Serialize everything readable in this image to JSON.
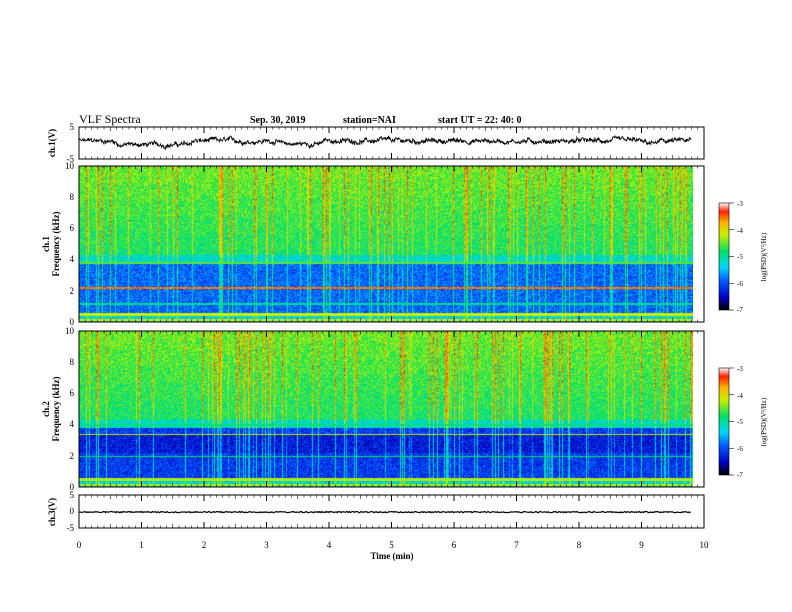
{
  "header": {
    "title": "VLF Spectra",
    "date": "Sep. 30, 2019",
    "station": "station=NAI",
    "start": "start  UT =   22: 40: 0"
  },
  "chart_data": [
    {
      "type": "line",
      "name": "ch1-waveform",
      "ylabel": "ch.1(V)",
      "ylim": [
        -5,
        5
      ],
      "yticks": [
        "5",
        "-5"
      ],
      "xlim": [
        0,
        10
      ]
    },
    {
      "type": "heatmap",
      "name": "ch1-spectrogram",
      "ylabel_line1": "ch.1",
      "ylabel_line2": "Frequency  (kHz)",
      "ylim": [
        0,
        10
      ],
      "yticks": [
        "10",
        "8",
        "6",
        "4",
        "2",
        "0"
      ],
      "xlim": [
        0,
        9.83
      ],
      "colorbar": {
        "label": "log(PSD)(V²/Hz)",
        "ticks": [
          "-3",
          "-4",
          "-5",
          "-6",
          "-7"
        ],
        "range": [
          -7,
          -3
        ]
      }
    },
    {
      "type": "heatmap",
      "name": "ch2-spectrogram",
      "ylabel_line1": "ch.2",
      "ylabel_line2": "Frequency  (kHz)",
      "ylim": [
        0,
        10
      ],
      "yticks": [
        "10",
        "8",
        "6",
        "4",
        "2",
        "0"
      ],
      "xlim": [
        0,
        9.83
      ],
      "colorbar": {
        "label": "log(PSD)(V²/Hz)",
        "ticks": [
          "-3",
          "-4",
          "-5",
          "-6",
          "-7"
        ],
        "range": [
          -7,
          -3
        ]
      }
    },
    {
      "type": "line",
      "name": "ch3-waveform",
      "ylabel": "ch.3(V)",
      "ylim": [
        -5,
        5
      ],
      "yticks": [
        "5",
        "0",
        "-5"
      ],
      "xlabel": "Time  (min)",
      "xlim": [
        0,
        10
      ],
      "xticks": [
        "0",
        "1",
        "2",
        "3",
        "4",
        "5",
        "6",
        "7",
        "8",
        "9",
        "10"
      ]
    }
  ]
}
